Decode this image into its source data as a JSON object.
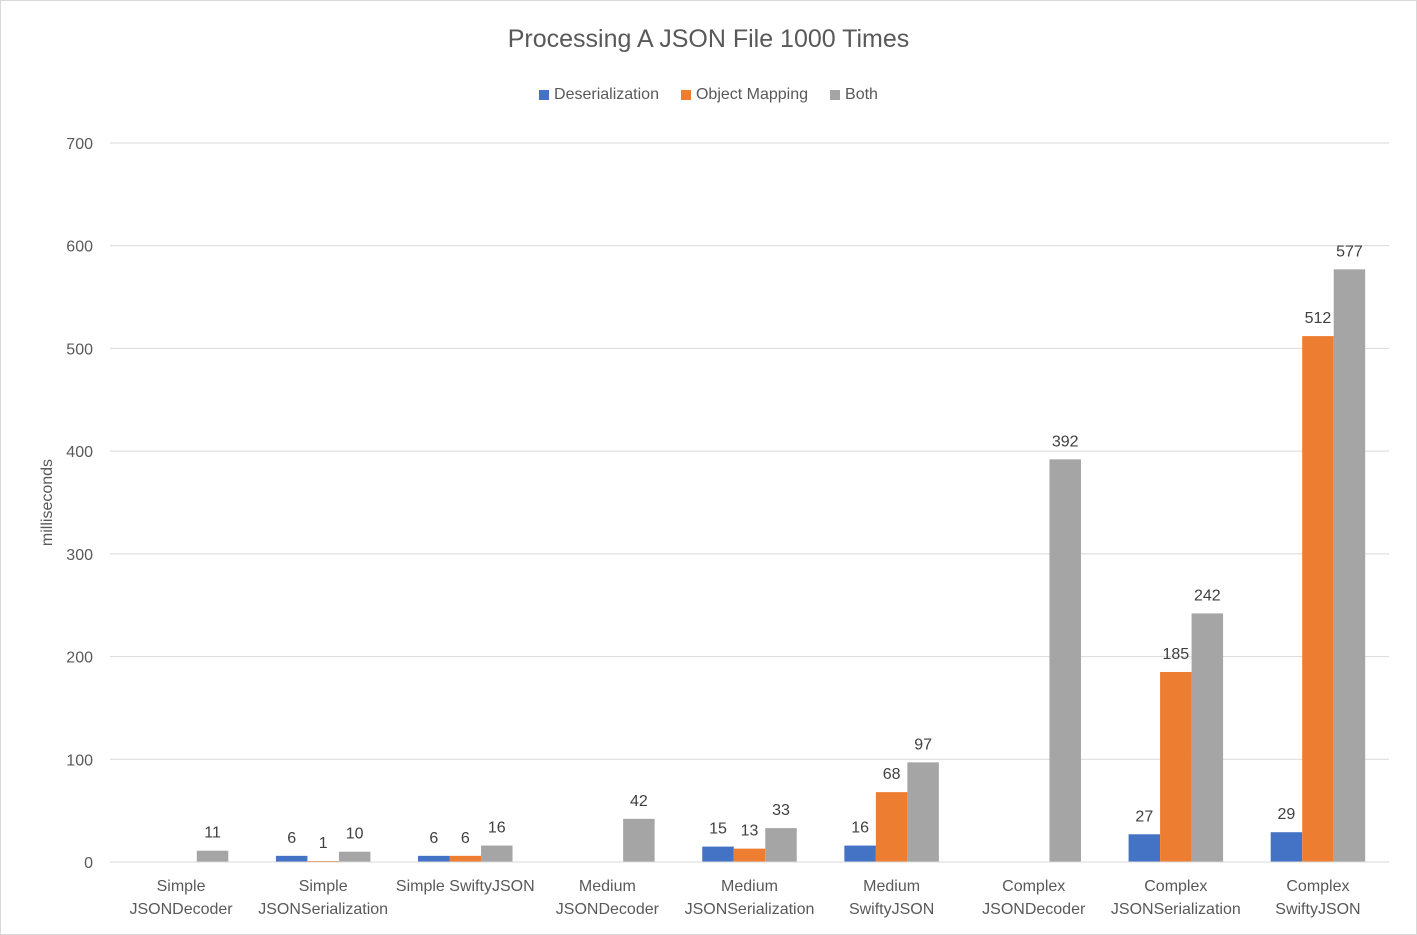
{
  "chart_data": {
    "type": "bar",
    "title": "Processing A JSON File 1000 Times",
    "xlabel": "",
    "ylabel": "milliseconds",
    "ylim": [
      0,
      700
    ],
    "yticks": [
      0,
      100,
      200,
      300,
      400,
      500,
      600,
      700
    ],
    "grid": true,
    "legend_position": "top",
    "categories": [
      [
        "Simple",
        "JSONDecoder"
      ],
      [
        "Simple",
        "JSONSerialization"
      ],
      [
        "Simple SwiftyJSON"
      ],
      [
        "Medium",
        "JSONDecoder"
      ],
      [
        "Medium",
        "JSONSerialization"
      ],
      [
        "Medium",
        "SwiftyJSON"
      ],
      [
        "Complex",
        "JSONDecoder"
      ],
      [
        "Complex",
        "JSONSerialization"
      ],
      [
        "Complex",
        "SwiftyJSON"
      ]
    ],
    "series": [
      {
        "name": "Deserialization",
        "color": "#4472c4",
        "values": [
          null,
          6,
          6,
          null,
          15,
          16,
          null,
          27,
          29
        ]
      },
      {
        "name": "Object Mapping",
        "color": "#ed7d31",
        "values": [
          null,
          1,
          6,
          null,
          13,
          68,
          null,
          185,
          512
        ]
      },
      {
        "name": "Both",
        "color": "#a5a5a5",
        "values": [
          11,
          10,
          16,
          42,
          33,
          97,
          392,
          242,
          577
        ]
      }
    ]
  }
}
